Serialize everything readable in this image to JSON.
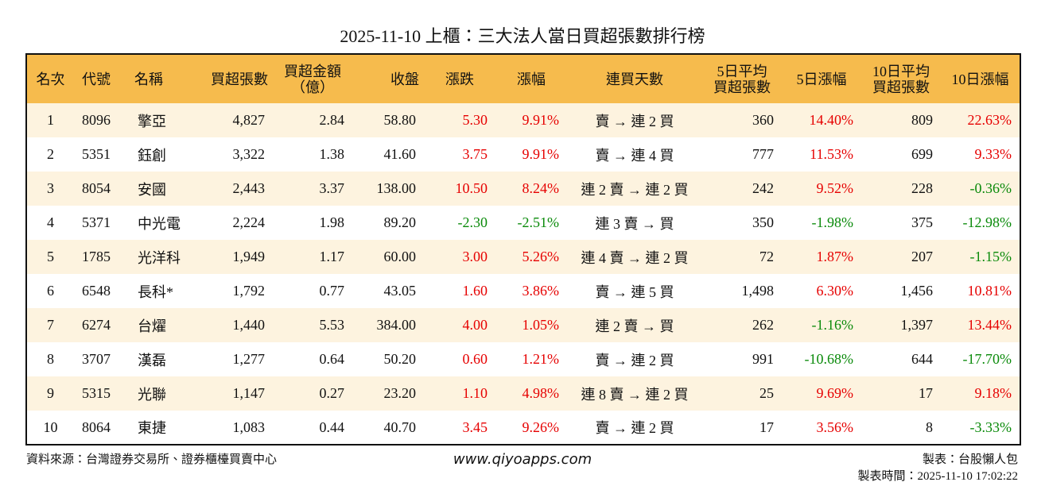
{
  "header": {
    "title": "2025-11-10 上櫃：三大法人當日買超張數排行榜"
  },
  "table": {
    "columns": [
      [
        "名次"
      ],
      [
        "代號"
      ],
      [
        "名稱"
      ],
      [
        "買超張數"
      ],
      [
        "買超金額",
        "（億）"
      ],
      [
        "收盤"
      ],
      [
        "漲跌"
      ],
      [
        "漲幅"
      ],
      [
        "連買天數"
      ],
      [
        "5日平均",
        "買超張數"
      ],
      [
        "5日漲幅"
      ],
      [
        "10日平均",
        "買超張數"
      ],
      [
        "10日漲幅"
      ]
    ],
    "rows": [
      [
        "1",
        "8096",
        "擎亞",
        "4,827",
        "2.84",
        "58.80",
        "5.30",
        "9.91%",
        "賣 → 連 2 買",
        "360",
        "14.40%",
        "809",
        "22.63%"
      ],
      [
        "2",
        "5351",
        "鈺創",
        "3,322",
        "1.38",
        "41.60",
        "3.75",
        "9.91%",
        "賣 → 連 4 買",
        "777",
        "11.53%",
        "699",
        "9.33%"
      ],
      [
        "3",
        "8054",
        "安國",
        "2,443",
        "3.37",
        "138.00",
        "10.50",
        "8.24%",
        "連 2 賣 → 連 2 買",
        "242",
        "9.52%",
        "228",
        "-0.36%"
      ],
      [
        "4",
        "5371",
        "中光電",
        "2,224",
        "1.98",
        "89.20",
        "-2.30",
        "-2.51%",
        "連 3 賣 → 買",
        "350",
        "-1.98%",
        "375",
        "-12.98%"
      ],
      [
        "5",
        "1785",
        "光洋科",
        "1,949",
        "1.17",
        "60.00",
        "3.00",
        "5.26%",
        "連 4 賣 → 連 2 買",
        "72",
        "1.87%",
        "207",
        "-1.15%"
      ],
      [
        "6",
        "6548",
        "長科*",
        "1,792",
        "0.77",
        "43.05",
        "1.60",
        "3.86%",
        "賣 → 連 5 買",
        "1,498",
        "6.30%",
        "1,456",
        "10.81%"
      ],
      [
        "7",
        "6274",
        "台燿",
        "1,440",
        "5.53",
        "384.00",
        "4.00",
        "1.05%",
        "連 2 賣 → 買",
        "262",
        "-1.16%",
        "1,397",
        "13.44%"
      ],
      [
        "8",
        "3707",
        "漢磊",
        "1,277",
        "0.64",
        "50.20",
        "0.60",
        "1.21%",
        "賣 → 連 2 買",
        "991",
        "-10.68%",
        "644",
        "-17.70%"
      ],
      [
        "9",
        "5315",
        "光聯",
        "1,147",
        "0.27",
        "23.20",
        "1.10",
        "4.98%",
        "連 8 賣 → 連 2 買",
        "25",
        "9.69%",
        "17",
        "9.18%"
      ],
      [
        "10",
        "8064",
        "東捷",
        "1,083",
        "0.44",
        "40.70",
        "3.45",
        "9.26%",
        "賣 → 連 2 買",
        "17",
        "3.56%",
        "8",
        "-3.33%"
      ]
    ]
  },
  "footer": {
    "source": "資料來源：台灣證券交易所、證券櫃檯買賣中心",
    "url": "www.qiyoapps.com",
    "maker": "製表：台股懶人包",
    "time": "製表時間：2025-11-10 17:02:22"
  }
}
